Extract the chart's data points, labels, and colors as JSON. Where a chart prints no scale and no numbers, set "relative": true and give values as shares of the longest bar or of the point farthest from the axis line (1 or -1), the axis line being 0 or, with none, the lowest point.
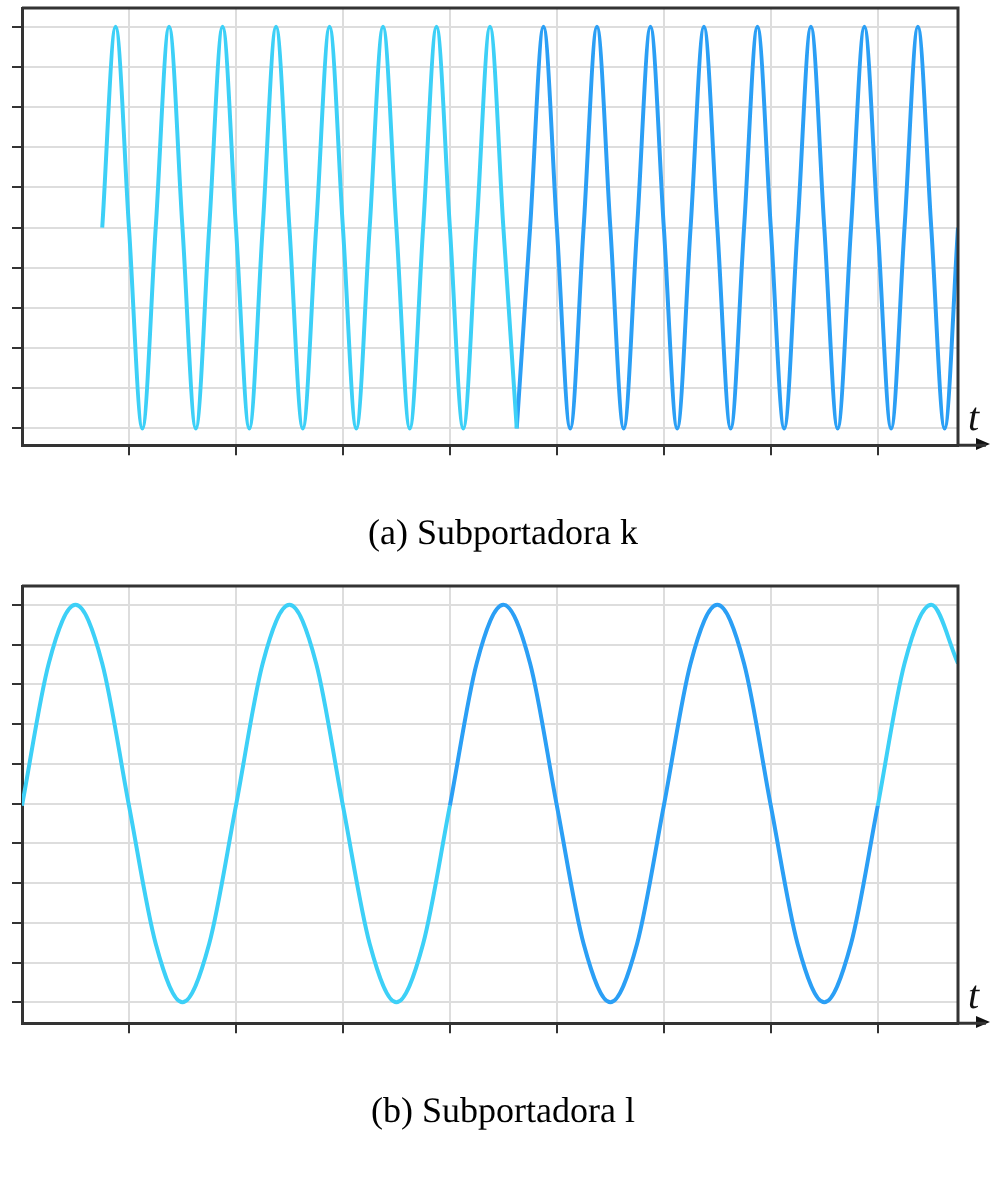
{
  "chart_data": [
    {
      "type": "line",
      "title": "(a) Subportadora k",
      "xlabel": "t",
      "relative": true,
      "grid": true,
      "marker": "none",
      "categories": [
        null,
        null,
        null,
        null,
        null,
        null,
        null,
        null,
        null,
        null,
        null,
        null,
        null,
        null,
        null,
        null,
        null,
        null,
        null,
        null,
        null,
        null,
        null,
        null,
        null,
        null,
        null,
        null,
        null,
        null,
        null,
        null,
        null,
        null,
        null,
        null,
        null,
        null,
        null,
        null,
        null,
        null,
        null,
        null,
        null,
        null,
        null,
        null,
        null,
        null,
        null,
        null,
        null,
        null,
        null,
        null,
        null,
        null,
        null,
        null,
        null,
        null,
        null,
        null,
        null,
        null,
        null,
        null,
        null,
        null,
        null
      ],
      "series": [
        {
          "color": "#3dd0f7",
          "values": [
            null,
            null,
            null,
            null,
            null,
            null,
            0.52,
            1,
            0.52,
            0.04,
            0.52,
            1,
            0.52,
            0.04,
            0.52,
            1,
            0.52,
            0.04,
            0.52,
            1,
            0.52,
            0.04,
            0.52,
            1,
            0.52,
            0.04,
            0.52,
            1,
            0.52,
            0.04,
            0.52,
            1,
            0.52,
            0.04,
            0.52,
            1,
            0.52,
            0.04,
            null,
            null,
            null,
            null,
            null,
            null,
            null,
            null,
            null,
            null,
            null,
            null,
            null,
            null,
            null,
            null,
            null,
            null,
            null,
            null,
            null,
            null,
            null,
            null,
            null,
            null,
            null,
            null,
            null,
            null,
            null,
            null,
            null
          ]
        },
        {
          "color": "#2b9ff5",
          "values": [
            null,
            null,
            null,
            null,
            null,
            null,
            null,
            null,
            null,
            null,
            null,
            null,
            null,
            null,
            null,
            null,
            null,
            null,
            null,
            null,
            null,
            null,
            null,
            null,
            null,
            null,
            null,
            null,
            null,
            null,
            null,
            null,
            null,
            null,
            null,
            null,
            null,
            0.04,
            0.52,
            1,
            0.52,
            0.04,
            0.52,
            1,
            0.52,
            0.04,
            0.52,
            1,
            0.52,
            0.04,
            0.52,
            1,
            0.52,
            0.04,
            0.52,
            1,
            0.52,
            0.04,
            0.52,
            1,
            0.52,
            0.04,
            0.52,
            1,
            0.52,
            0.04,
            0.52,
            1,
            0.52,
            0.04,
            0.52
          ]
        }
      ]
    },
    {
      "type": "line",
      "title": "(b) Subportadora l",
      "xlabel": "t",
      "relative": true,
      "grid": true,
      "marker": "none",
      "categories": [
        null,
        null,
        null,
        null,
        null,
        null,
        null,
        null,
        null,
        null,
        null,
        null,
        null,
        null,
        null,
        null,
        null,
        null,
        null,
        null,
        null,
        null,
        null,
        null,
        null,
        null,
        null,
        null,
        null,
        null,
        null,
        null,
        null,
        null,
        null,
        null
      ],
      "series": [
        {
          "color": "#3dd0f7",
          "values": [
            0.52,
            0.86,
            1,
            0.86,
            0.52,
            0.19,
            0.05,
            0.19,
            0.52,
            0.86,
            1,
            0.86,
            0.52,
            0.19,
            0.05,
            0.19,
            0.52,
            null,
            null,
            null,
            null,
            null,
            null,
            null,
            null,
            null,
            null,
            null,
            null,
            null,
            null,
            null,
            0.52,
            0.86,
            1,
            0.86
          ]
        },
        {
          "color": "#2b9ff5",
          "values": [
            null,
            null,
            null,
            null,
            null,
            null,
            null,
            null,
            null,
            null,
            null,
            null,
            null,
            null,
            null,
            null,
            0.52,
            0.86,
            1,
            0.86,
            0.52,
            0.19,
            0.05,
            0.19,
            0.52,
            0.86,
            1,
            0.86,
            0.52,
            0.19,
            0.05,
            0.19,
            0.52,
            null,
            null,
            null
          ]
        }
      ]
    }
  ]
}
